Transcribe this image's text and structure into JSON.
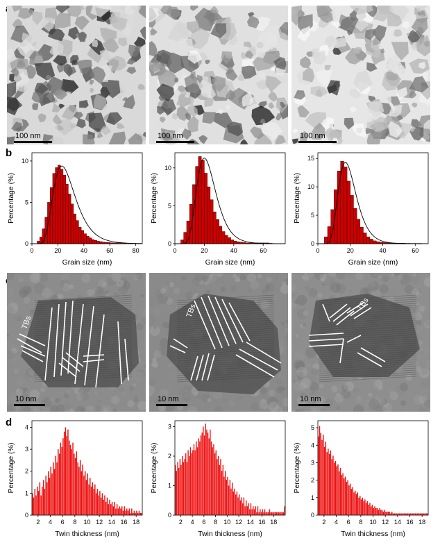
{
  "panels": {
    "a": {
      "label": "a",
      "scalebar": "100 nm"
    },
    "b": {
      "label": "b"
    },
    "c": {
      "label": "c",
      "scalebar": "10 nm",
      "annotation": "TBs"
    },
    "d": {
      "label": "d"
    }
  },
  "colors": {
    "bar_fill": "#cc0000",
    "bar_stroke": "#400000",
    "fit_line": "#000000",
    "twin_bar": "#ee1111"
  },
  "chart_data": [
    {
      "type": "bar",
      "panel": "b",
      "index": 1,
      "xlabel": "Grain size (nm)",
      "ylabel": "Percentage (%)",
      "xlim": [
        0,
        85
      ],
      "ylim": [
        0,
        11
      ],
      "xticks": [
        0,
        20,
        40,
        60,
        80
      ],
      "yticks": [
        0,
        5,
        10
      ],
      "bin_width": 2,
      "x_start": 4,
      "values": [
        0.3,
        0.8,
        1.8,
        3.2,
        5.0,
        6.8,
        8.5,
        9.2,
        9.5,
        9.0,
        8.3,
        7.2,
        6.0,
        4.8,
        3.6,
        2.8,
        2.0,
        1.6,
        1.2,
        0.9,
        0.7,
        0.5,
        0.4,
        0.3,
        0.25,
        0.2,
        0.15,
        0.15,
        0.1,
        0.1,
        0.1,
        0.1,
        0.1,
        0.1
      ],
      "fit": {
        "mean": 23,
        "sd": 8.5,
        "peak": 9.4
      }
    },
    {
      "type": "bar",
      "panel": "b",
      "index": 2,
      "xlabel": "Grain size (nm)",
      "ylabel": "Percentage (%)",
      "xlim": [
        0,
        75
      ],
      "ylim": [
        0,
        12
      ],
      "xticks": [
        0,
        20,
        40,
        60
      ],
      "yticks": [
        0,
        5,
        10
      ],
      "bin_width": 2,
      "x_start": 4,
      "values": [
        0.5,
        1.5,
        3.0,
        5.2,
        7.8,
        10.2,
        11.5,
        11.0,
        9.3,
        7.5,
        5.8,
        4.2,
        3.2,
        2.3,
        1.6,
        1.1,
        0.8,
        0.5,
        0.35,
        0.25,
        0.2,
        0.15,
        0.1,
        0.1,
        0.1,
        0.1,
        0.1,
        0.1,
        0.1,
        0.1,
        0.05
      ],
      "fit": {
        "mean": 20,
        "sd": 6.5,
        "peak": 11.3
      }
    },
    {
      "type": "bar",
      "panel": "b",
      "index": 3,
      "xlabel": "Grain size (nm)",
      "ylabel": "Percentage (%)",
      "xlim": [
        0,
        68
      ],
      "ylim": [
        0,
        16
      ],
      "xticks": [
        0,
        20,
        40,
        60
      ],
      "yticks": [
        0,
        5,
        10,
        15
      ],
      "bin_width": 2,
      "x_start": 4,
      "values": [
        1.2,
        3.0,
        6.0,
        9.5,
        12.8,
        14.5,
        13.5,
        11.0,
        8.5,
        6.2,
        4.3,
        2.9,
        1.9,
        1.2,
        0.8,
        0.5,
        0.35,
        0.25,
        0.2,
        0.15,
        0.1,
        0.1,
        0.1,
        0.1,
        0.1,
        0.05,
        0.05,
        0.05,
        0.05,
        0.05
      ],
      "fit": {
        "mean": 17,
        "sd": 5.5,
        "peak": 14.3
      }
    },
    {
      "type": "bar",
      "panel": "d",
      "index": 1,
      "xlabel": "Twin thickness (nm)",
      "ylabel": "Percentage (%)",
      "xlim": [
        1,
        19
      ],
      "ylim": [
        0,
        4.3
      ],
      "xticks": [
        2,
        4,
        6,
        8,
        10,
        12,
        14,
        16,
        18
      ],
      "yticks": [
        0,
        1,
        2,
        3,
        4
      ],
      "bin_width": 0.2,
      "x_start": 1,
      "values": [
        1.0,
        0.8,
        1.2,
        0.9,
        1.3,
        1.1,
        1.5,
        0.9,
        1.3,
        1.6,
        1.2,
        1.8,
        1.5,
        2.0,
        1.7,
        2.2,
        1.9,
        2.4,
        2.1,
        2.7,
        2.4,
        3.0,
        2.8,
        3.3,
        3.1,
        3.5,
        3.8,
        4.0,
        3.6,
        3.9,
        3.4,
        3.2,
        3.0,
        3.3,
        2.8,
        2.6,
        2.9,
        2.4,
        2.2,
        2.5,
        2.0,
        2.3,
        1.8,
        2.0,
        1.6,
        1.9,
        1.4,
        1.7,
        1.3,
        1.5,
        1.2,
        1.4,
        1.0,
        1.2,
        0.9,
        1.1,
        0.8,
        1.0,
        0.7,
        0.9,
        0.6,
        0.8,
        0.5,
        0.7,
        0.5,
        0.6,
        0.4,
        0.6,
        0.3,
        0.5,
        0.3,
        0.4,
        0.3,
        0.4,
        0.2,
        0.4,
        0.2,
        0.3,
        0.2,
        0.3,
        0.1,
        0.3,
        0.1,
        0.2,
        0.1,
        0.2,
        0.1,
        0.2,
        0.1,
        0.1
      ]
    },
    {
      "type": "bar",
      "panel": "d",
      "index": 2,
      "xlabel": "Twin thickness (nm)",
      "ylabel": "Percentage (%)",
      "xlim": [
        1,
        20
      ],
      "ylim": [
        0,
        3.2
      ],
      "xticks": [
        2,
        4,
        6,
        8,
        10,
        12,
        14,
        16,
        18
      ],
      "yticks": [
        0,
        1,
        2,
        3
      ],
      "bin_width": 0.2,
      "x_start": 1,
      "values": [
        1.7,
        1.5,
        1.8,
        1.6,
        1.9,
        1.7,
        2.0,
        1.8,
        1.9,
        2.1,
        1.8,
        2.2,
        2.0,
        2.3,
        2.1,
        2.2,
        2.4,
        2.2,
        2.5,
        2.3,
        2.6,
        2.5,
        2.7,
        2.8,
        3.0,
        2.7,
        3.1,
        2.9,
        2.8,
        2.6,
        2.9,
        2.5,
        2.3,
        2.4,
        2.1,
        2.2,
        1.9,
        2.0,
        1.7,
        1.9,
        1.5,
        1.7,
        1.3,
        1.5,
        1.2,
        1.3,
        1.0,
        1.2,
        0.9,
        1.1,
        0.8,
        0.9,
        0.7,
        0.8,
        0.6,
        0.7,
        0.5,
        0.6,
        0.4,
        0.6,
        0.3,
        0.5,
        0.3,
        0.4,
        0.2,
        0.4,
        0.2,
        0.3,
        0.2,
        0.3,
        0.1,
        0.3,
        0.1,
        0.2,
        0.1,
        0.2,
        0.1,
        0.2,
        0.1,
        0.1,
        0.1,
        0.2,
        0.1,
        0.1,
        0.1,
        0.1,
        0.1,
        0.1,
        0.1,
        0.1,
        0.1,
        0.1,
        0.1,
        0.1,
        0.3
      ]
    },
    {
      "type": "bar",
      "panel": "d",
      "index": 3,
      "xlabel": "Twin thickness (nm)",
      "ylabel": "Percentage (%)",
      "xlim": [
        1,
        19
      ],
      "ylim": [
        0,
        5.4
      ],
      "xticks": [
        2,
        4,
        6,
        8,
        10,
        12,
        14,
        16,
        18
      ],
      "yticks": [
        0,
        1,
        2,
        3,
        4,
        5
      ],
      "bin_width": 0.2,
      "x_start": 1,
      "values": [
        4.5,
        5.1,
        4.7,
        4.3,
        4.6,
        3.9,
        4.2,
        3.6,
        3.8,
        3.5,
        3.7,
        3.2,
        3.4,
        3.0,
        3.1,
        2.8,
        2.9,
        2.5,
        2.7,
        2.3,
        2.4,
        2.1,
        2.2,
        1.9,
        2.0,
        1.7,
        1.8,
        1.5,
        1.6,
        1.3,
        1.4,
        1.2,
        1.3,
        1.0,
        1.1,
        0.9,
        1.0,
        0.8,
        0.9,
        0.7,
        0.8,
        0.6,
        0.7,
        0.5,
        0.6,
        0.4,
        0.5,
        0.4,
        0.4,
        0.3,
        0.4,
        0.3,
        0.3,
        0.2,
        0.3,
        0.2,
        0.2,
        0.2,
        0.2,
        0.1,
        0.2,
        0.1,
        0.1,
        0.1,
        0.1,
        0.1,
        0.1,
        0.1,
        0.1,
        0.1,
        0.1,
        0.1,
        0.1,
        0.1,
        0.1,
        0.1,
        0.1,
        0.1,
        0.1,
        0.1,
        0.1,
        0.1,
        0.1,
        0.1,
        0.1,
        0.1,
        0.1,
        0.1,
        0.1,
        0.1
      ]
    }
  ]
}
